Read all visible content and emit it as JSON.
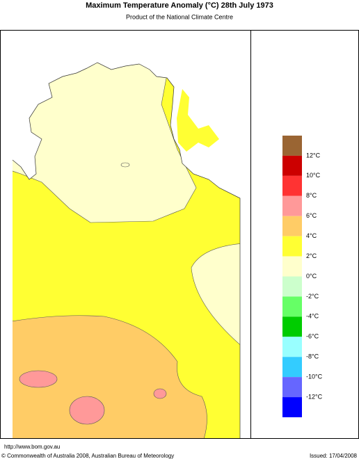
{
  "header": {
    "title": "Maximum Temperature Anomaly (°C)  28th July 1973",
    "subtitle": "Product of the National Climate Centre"
  },
  "legend": {
    "colors": [
      "#9a6533",
      "#cc0000",
      "#ff3333",
      "#ff9999",
      "#ffcc66",
      "#ffff33",
      "#ffffcc",
      "#ccffcc",
      "#66ff66",
      "#00cc00",
      "#99ffff",
      "#33ccff",
      "#6666ff",
      "#0000ff"
    ],
    "labels": [
      "12°C",
      "10°C",
      "8°C",
      "6°C",
      "4°C",
      "2°C",
      "0°C",
      "-2°C",
      "-4°C",
      "-6°C",
      "-8°C",
      "-10°C",
      "-12°C"
    ]
  },
  "footer": {
    "url": "http://www.bom.gov.au",
    "copyright": "© Commonwealth of Australia 2008, Australian Bureau of Meteorology",
    "issued": "Issued: 17/04/2008"
  }
}
